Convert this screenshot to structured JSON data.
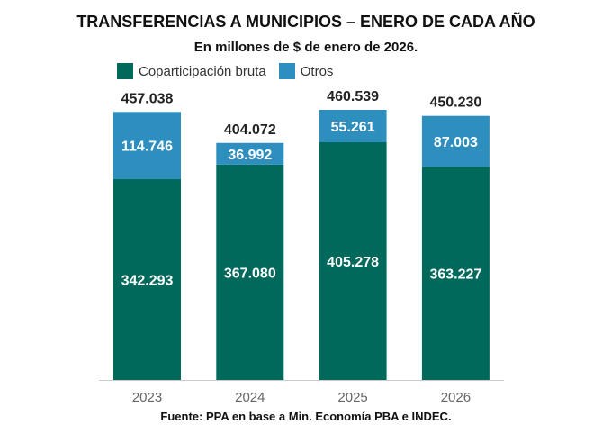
{
  "chart_data": {
    "type": "bar",
    "stacked": true,
    "title": "TRANSFERENCIAS A MUNICIPIOS – ENERO DE CADA AÑO",
    "subtitle": "En millones de $ de enero de 2026.",
    "source": "Fuente: PPA en base a Min. Economía PBA e INDEC.",
    "categories": [
      "2023",
      "2024",
      "2025",
      "2026"
    ],
    "series": [
      {
        "name": "Coparticipación bruta",
        "color": "#00695c",
        "values": [
          342.293,
          367.08,
          405.278,
          363.227
        ],
        "labels": [
          "342.293",
          "367.080",
          "405.278",
          "363.227"
        ]
      },
      {
        "name": "Otros",
        "color": "#2e8fbf",
        "values": [
          114.746,
          36.992,
          55.261,
          87.003
        ],
        "labels": [
          "114.746",
          "36.992",
          "55.261",
          "87.003"
        ]
      }
    ],
    "totals": [
      "457.038",
      "404.072",
      "460.539",
      "450.230"
    ],
    "legend_position": "top-left",
    "grid": false,
    "ylim": [
      0,
      460.539
    ]
  }
}
